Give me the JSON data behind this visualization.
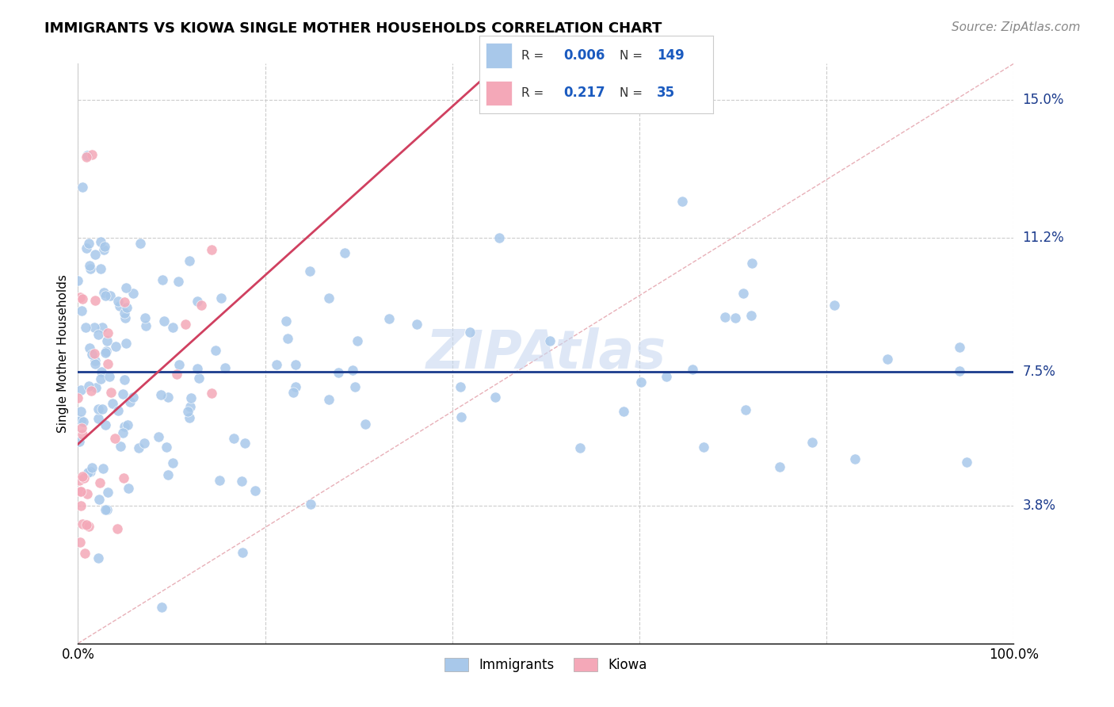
{
  "title": "IMMIGRANTS VS KIOWA SINGLE MOTHER HOUSEHOLDS CORRELATION CHART",
  "source": "Source: ZipAtlas.com",
  "ylabel": "Single Mother Households",
  "xlim": [
    0,
    1.0
  ],
  "ylim": [
    0.0,
    0.16
  ],
  "y_tick_labels": [
    "3.8%",
    "7.5%",
    "11.2%",
    "15.0%"
  ],
  "y_tick_values": [
    0.038,
    0.075,
    0.112,
    0.15
  ],
  "immigrants_color": "#a8c8ea",
  "kiowa_color": "#f4a8b8",
  "trend_blue_color": "#1a3a8c",
  "trend_pink_color": "#d04060",
  "background_color": "#ffffff",
  "grid_color": "#cccccc",
  "watermark_color": "#c8d8f0",
  "title_fontsize": 13,
  "axis_label_fontsize": 11,
  "tick_fontsize": 12,
  "source_fontsize": 11
}
